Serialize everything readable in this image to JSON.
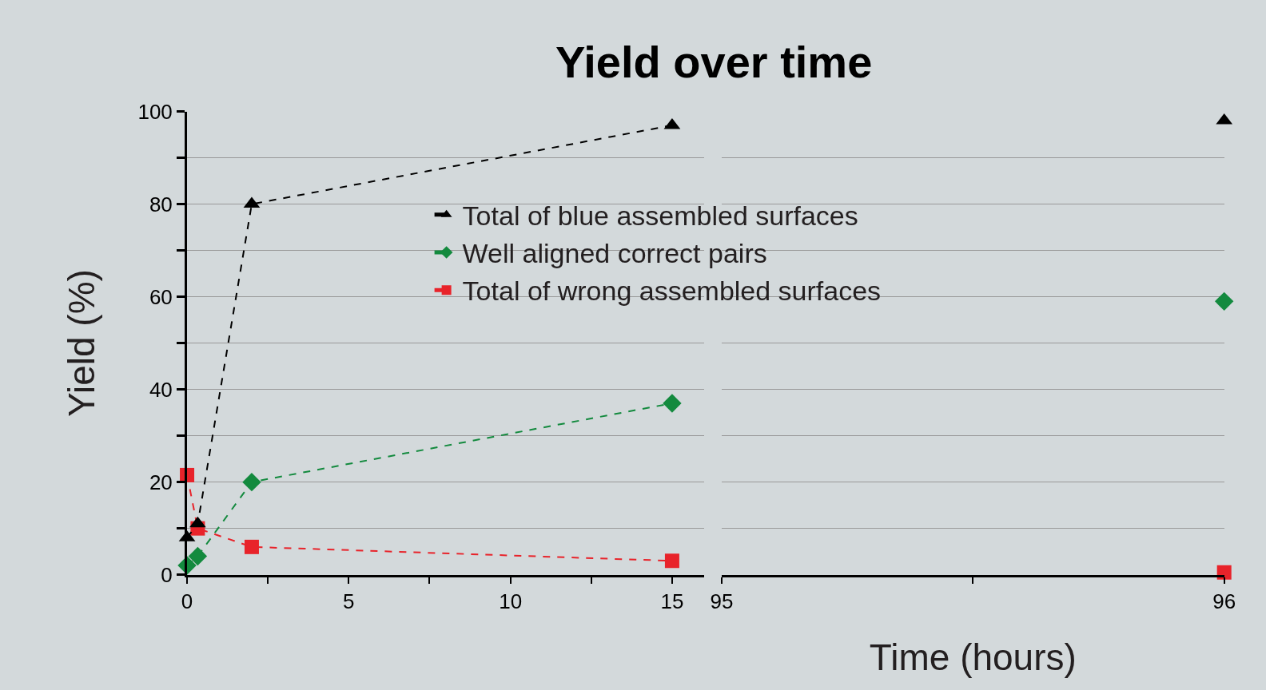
{
  "chart_data": [
    {
      "type": "line",
      "title": "Yield over time",
      "ylabel": "Yield (%)",
      "xlim": [
        0,
        16
      ],
      "xticks": [
        0,
        {
          "value": 2.5,
          "label": null
        },
        5,
        {
          "value": 7.5,
          "label": null
        },
        10,
        {
          "value": 12.5,
          "label": null
        },
        15
      ],
      "ylim": [
        0,
        100
      ],
      "yticks": [
        0,
        {
          "value": 10,
          "label": null
        },
        20,
        {
          "value": 30,
          "label": null
        },
        40,
        {
          "value": 50,
          "label": null
        },
        60,
        {
          "value": 70,
          "label": null
        },
        80,
        {
          "value": 90,
          "label": null
        },
        100
      ],
      "grid": "y",
      "legend": "top",
      "line_style": "dashed",
      "series": [
        {
          "name": "Total of blue assembled surfaces",
          "color": "#000000",
          "marker": "triangle",
          "x": [
            0,
            0.33,
            2,
            15
          ],
          "values": [
            8,
            11,
            80,
            97
          ]
        },
        {
          "name": "Well aligned correct pairs",
          "color": "#138a3e",
          "marker": "diamond",
          "x": [
            0,
            0.33,
            2,
            15
          ],
          "values": [
            2,
            4,
            20,
            37
          ]
        },
        {
          "name": "Total of wrong assembled surfaces",
          "color": "#e8232a",
          "marker": "square",
          "x": [
            0,
            0.33,
            2,
            15
          ],
          "values": [
            21.5,
            10,
            6,
            3
          ]
        }
      ]
    },
    {
      "type": "line",
      "xlabel": "Time (hours)",
      "xlim": [
        95,
        96
      ],
      "xticks": [
        95,
        {
          "value": 95.5,
          "label": null
        },
        96
      ],
      "ylim": [
        0,
        100
      ],
      "yticks": [
        0,
        {
          "value": 10,
          "label": null
        },
        20,
        {
          "value": 30,
          "label": null
        },
        40,
        {
          "value": 50,
          "label": null
        },
        60,
        {
          "value": 70,
          "label": null
        },
        80,
        {
          "value": 90,
          "label": null
        },
        100
      ],
      "grid": "y",
      "tick_labels": "x",
      "line_style": "dashed",
      "series": [
        {
          "color": "#000000",
          "marker": "triangle",
          "x": [
            96
          ],
          "values": [
            98
          ]
        },
        {
          "color": "#138a3e",
          "marker": "diamond",
          "x": [
            96
          ],
          "values": [
            59
          ]
        },
        {
          "color": "#e8232a",
          "marker": "square",
          "x": [
            96
          ],
          "values": [
            0.5
          ]
        }
      ]
    }
  ]
}
